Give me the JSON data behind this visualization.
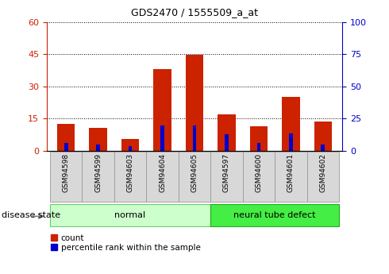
{
  "title": "GDS2470 / 1555509_a_at",
  "samples": [
    "GSM94598",
    "GSM94599",
    "GSM94603",
    "GSM94604",
    "GSM94605",
    "GSM94597",
    "GSM94600",
    "GSM94601",
    "GSM94602"
  ],
  "count_values": [
    12.5,
    10.5,
    5.5,
    38.0,
    44.5,
    17.0,
    11.5,
    25.0,
    13.5
  ],
  "percentile_values": [
    6.0,
    5.0,
    3.5,
    19.5,
    19.5,
    12.5,
    6.0,
    13.5,
    4.5
  ],
  "groups": [
    {
      "label": "normal",
      "start": 0,
      "end": 5,
      "color": "#ccffcc",
      "edge_color": "#66cc66"
    },
    {
      "label": "neural tube defect",
      "start": 5,
      "end": 9,
      "color": "#44ee44",
      "edge_color": "#22aa22"
    }
  ],
  "disease_state_label": "disease state",
  "ylim_left": [
    0,
    60
  ],
  "ylim_right": [
    0,
    100
  ],
  "yticks_left": [
    0,
    15,
    30,
    45,
    60
  ],
  "yticks_right": [
    0,
    25,
    50,
    75,
    100
  ],
  "bar_color": "#cc2200",
  "percentile_color": "#0000cc",
  "bar_width": 0.55,
  "pct_bar_width": 0.12,
  "left_tick_color": "#cc2200",
  "right_tick_color": "#0000cc"
}
